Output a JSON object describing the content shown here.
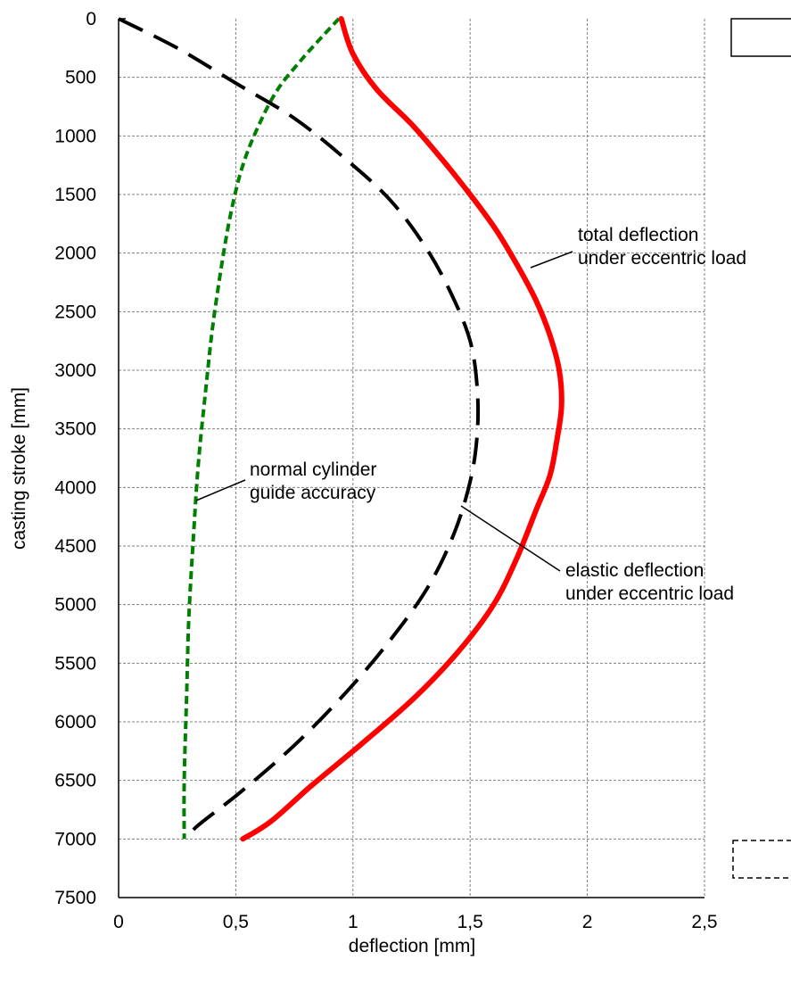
{
  "chart_data": {
    "type": "line",
    "xlabel": "deflection [mm]",
    "ylabel": "casting stroke [mm]",
    "xlim": [
      0,
      2.5
    ],
    "ylim": [
      7500,
      0
    ],
    "y_inverted": true,
    "grid": true,
    "x_ticks": [
      "0",
      "0,5",
      "1",
      "1,5",
      "2",
      "2,5"
    ],
    "y_ticks": [
      "0",
      "500",
      "1000",
      "1500",
      "2000",
      "2500",
      "3000",
      "3500",
      "4000",
      "4500",
      "5000",
      "5500",
      "6000",
      "6500",
      "7000",
      "7500"
    ],
    "series": [
      {
        "key": "total",
        "color": "#ff0000",
        "style": "solid",
        "points": [
          [
            0.95,
            0
          ],
          [
            1.0,
            300
          ],
          [
            1.1,
            600
          ],
          [
            1.25,
            900
          ],
          [
            1.38,
            1200
          ],
          [
            1.5,
            1500
          ],
          [
            1.61,
            1800
          ],
          [
            1.7,
            2100
          ],
          [
            1.78,
            2400
          ],
          [
            1.84,
            2700
          ],
          [
            1.88,
            3000
          ],
          [
            1.89,
            3300
          ],
          [
            1.87,
            3600
          ],
          [
            1.84,
            3900
          ],
          [
            1.78,
            4200
          ],
          [
            1.7,
            4600
          ],
          [
            1.6,
            5000
          ],
          [
            1.45,
            5400
          ],
          [
            1.26,
            5800
          ],
          [
            1.03,
            6200
          ],
          [
            0.82,
            6550
          ],
          [
            0.65,
            6850
          ],
          [
            0.53,
            7000
          ]
        ]
      },
      {
        "key": "elastic",
        "color": "#000000",
        "style": "dashed",
        "points": [
          [
            0.0,
            0
          ],
          [
            0.25,
            250
          ],
          [
            0.5,
            550
          ],
          [
            0.75,
            850
          ],
          [
            0.97,
            1200
          ],
          [
            1.16,
            1550
          ],
          [
            1.31,
            1950
          ],
          [
            1.42,
            2350
          ],
          [
            1.5,
            2750
          ],
          [
            1.53,
            3150
          ],
          [
            1.53,
            3550
          ],
          [
            1.5,
            3950
          ],
          [
            1.43,
            4400
          ],
          [
            1.32,
            4850
          ],
          [
            1.16,
            5300
          ],
          [
            0.97,
            5750
          ],
          [
            0.75,
            6200
          ],
          [
            0.52,
            6600
          ],
          [
            0.33,
            6900
          ],
          [
            0.3,
            7000
          ]
        ]
      },
      {
        "key": "guide",
        "color": "#008000",
        "style": "dotted",
        "points": [
          [
            0.94,
            0
          ],
          [
            0.87,
            150
          ],
          [
            0.78,
            350
          ],
          [
            0.68,
            600
          ],
          [
            0.6,
            900
          ],
          [
            0.53,
            1250
          ],
          [
            0.48,
            1650
          ],
          [
            0.44,
            2100
          ],
          [
            0.4,
            2650
          ],
          [
            0.37,
            3200
          ],
          [
            0.34,
            3800
          ],
          [
            0.32,
            4400
          ],
          [
            0.3,
            5100
          ],
          [
            0.29,
            5800
          ],
          [
            0.28,
            6500
          ],
          [
            0.28,
            7000
          ]
        ]
      }
    ],
    "annotations": [
      {
        "key": "total",
        "lines": [
          "total deflection",
          "under eccentric load"
        ]
      },
      {
        "key": "elastic",
        "lines": [
          "elastic deflection",
          "under eccentric load"
        ]
      },
      {
        "key": "guide",
        "lines": [
          "normal cylinder",
          "guide accuracy"
        ]
      }
    ]
  }
}
